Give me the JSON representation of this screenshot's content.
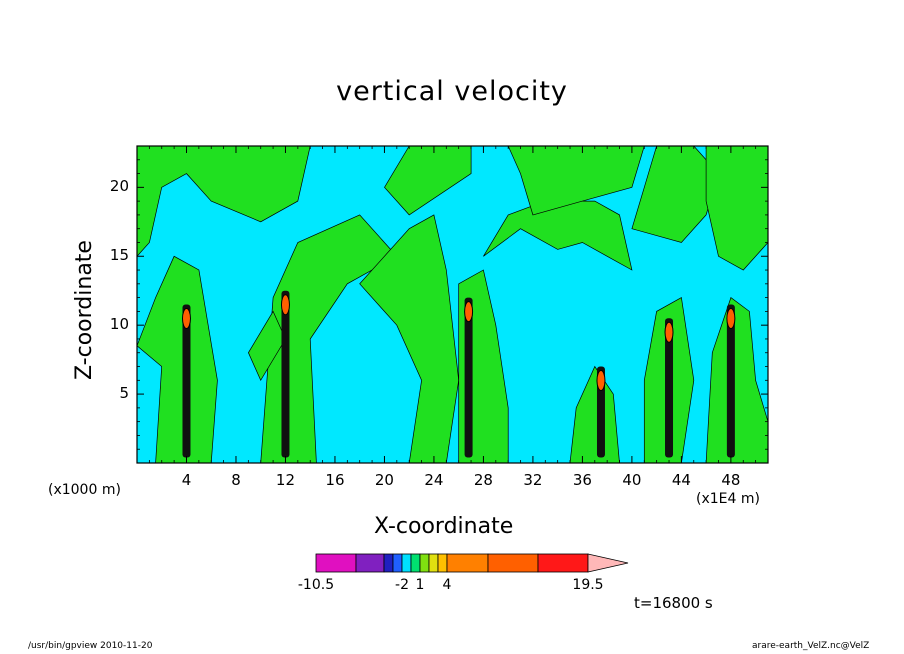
{
  "chart_data": {
    "type": "heatmap",
    "title": "vertical velocity",
    "xlabel": "X-coordinate",
    "ylabel": "Z-coordinate",
    "x_unit": "(x1000 m)",
    "x_unit_secondary": "(x1E4 m)",
    "xlim": [
      0,
      51
    ],
    "ylim": [
      0,
      23
    ],
    "x_ticks": [
      4,
      8,
      12,
      16,
      20,
      24,
      28,
      32,
      36,
      40,
      44,
      48
    ],
    "y_ticks": [
      5,
      10,
      15,
      20
    ],
    "colorbar": {
      "labels": [
        "-10.5",
        "-2",
        "1",
        "4",
        "19.5"
      ],
      "levels": [
        -10.5,
        -8,
        -5,
        -3,
        -2,
        -1,
        0,
        1,
        2,
        3,
        4,
        7.5,
        11.5,
        15.5,
        19.5
      ],
      "colors": [
        "#e010c0",
        "#8020c0",
        "#2020c0",
        "#2060ff",
        "#00e0ff",
        "#00e070",
        "#80e010",
        "#e0e010",
        "#ffc000",
        "#ff8000",
        "#ff6000",
        "#ff1818",
        "#ff8080",
        "#ffb8b8"
      ]
    },
    "background_field": {
      "cyan_range": "negative",
      "green_range": "near zero"
    },
    "convective_cores": [
      {
        "x": 4.0,
        "z_top": 11.5,
        "max": "positive"
      },
      {
        "x": 12.0,
        "z_top": 12.5,
        "max": "positive"
      },
      {
        "x": 26.8,
        "z_top": 12.0,
        "max": "positive"
      },
      {
        "x": 37.5,
        "z_top": 7.0,
        "max": "positive"
      },
      {
        "x": 43.0,
        "z_top": 10.5,
        "max": "positive"
      },
      {
        "x": 48.0,
        "z_top": 11.5,
        "max": "positive"
      }
    ],
    "time_label": "t=16800 s"
  },
  "footer": {
    "left": "/usr/bin/gpview   2010-11-20",
    "right": "arare-earth_VelZ.nc@VelZ"
  },
  "colors": {
    "cyan": "#00e8ff",
    "green": "#20e020",
    "core": "#000000",
    "orange": "#ff6000"
  }
}
